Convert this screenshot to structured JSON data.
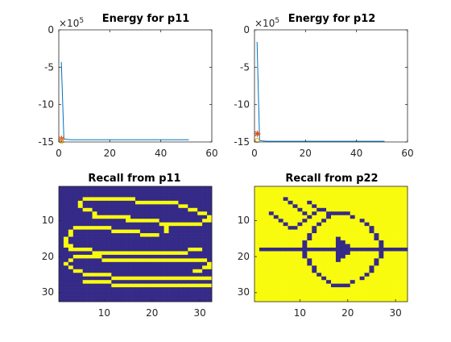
{
  "chart_data": [
    {
      "type": "line",
      "title": "Energy for p11",
      "xlabel": "",
      "ylabel": "",
      "y_exponent": "×10^5",
      "y_exponent_base": "×10",
      "y_exponent_power": "5",
      "xlim": [
        0,
        60
      ],
      "ylim": [
        -15,
        0
      ],
      "x_ticks": [
        "0",
        "20",
        "40",
        "60"
      ],
      "y_ticks": [
        "0",
        "-5",
        "-10",
        "-15"
      ],
      "series": [
        {
          "x": [
            1,
            2,
            3,
            4,
            5,
            10,
            20,
            30,
            40,
            51
          ],
          "values": [
            -4.3,
            -14.6,
            -14.65,
            -14.68,
            -14.7,
            -14.7,
            -14.7,
            -14.7,
            -14.7,
            -14.7
          ],
          "color": "#0072BD"
        }
      ],
      "markers": [
        {
          "x": 1.1,
          "y": -14.6,
          "color": "#D95319",
          "shape": "star"
        },
        {
          "x": 1.1,
          "y": -14.9,
          "color": "#EDB120",
          "shape": "circle"
        }
      ]
    },
    {
      "type": "line",
      "title": "Energy for p12",
      "xlabel": "",
      "ylabel": "",
      "y_exponent": "×10^5",
      "y_exponent_base": "×10",
      "y_exponent_power": "5",
      "xlim": [
        0,
        60
      ],
      "ylim": [
        -15,
        0
      ],
      "x_ticks": [
        "0",
        "20",
        "40",
        "60"
      ],
      "y_ticks": [
        "0",
        "-5",
        "-10",
        "-15"
      ],
      "series": [
        {
          "x": [
            1,
            2,
            3,
            4,
            5,
            10,
            20,
            30,
            40,
            51
          ],
          "values": [
            -1.6,
            -14.8,
            -14.85,
            -14.88,
            -14.9,
            -14.9,
            -14.9,
            -14.9,
            -14.9,
            -14.9
          ],
          "color": "#0072BD"
        }
      ],
      "markers": [
        {
          "x": 1.1,
          "y": -13.9,
          "color": "#D95319",
          "shape": "star"
        },
        {
          "x": 1.1,
          "y": -14.8,
          "color": "#EDB120",
          "shape": "circle"
        }
      ]
    },
    {
      "type": "heatmap",
      "title": "Recall from p11",
      "xlim": [
        0.5,
        32.5
      ],
      "ylim": [
        0.5,
        32.5
      ],
      "x_ticks": [
        "10",
        "20",
        "30"
      ],
      "y_ticks": [
        "10",
        "20",
        "30"
      ],
      "colors": {
        "0": "#352A87",
        "1": "#F9FB0E"
      },
      "rows": [
        "00000000000000000000000000000000",
        "00000000000000000000000000000000",
        "00000000000000000000000000000000",
        "00000111111111110000000000000000",
        "00001000000000001111111110000000",
        "00001000000000000000000001100000",
        "00000110000000000000000000011000",
        "00000001000000000000000000000110",
        "00000001111111100000000000000001",
        "00000000000000111111100000000011",
        "00000000000000000000011111111100",
        "00011111111000000000001000000000",
        "00100000000111111000001000000000",
        "00100000000000000111100000000000",
        "01000000000000000000000000000000",
        "01000000000000000000000000000000",
        "01100000000000000000000000000000",
        "00111110000000000000000000011100",
        "00000001111111111111111111100000",
        "00011111100000000000000000000000",
        "00100000011111111111111111111110",
        "01000000000000000000000000000001",
        "00100000000000000000000000000011",
        "00011000000000000000000000001100",
        "00000111111000000000000000000000",
        "00000000000111111111111111111111",
        "00000111111000000000000000000000",
        "00000000000111111111111111111111",
        "00000000000000000000000000000000",
        "00000000000000000000000000000000",
        "00000000000000000000000000000000",
        "00000000000000000000000000000000"
      ]
    },
    {
      "type": "heatmap",
      "title": "Recall from p22",
      "xlim": [
        0.5,
        32.5
      ],
      "ylim": [
        0.5,
        32.5
      ],
      "x_ticks": [
        "10",
        "20",
        "30"
      ],
      "y_ticks": [
        "10",
        "20",
        "30"
      ],
      "colors": {
        "0": "#352A87",
        "1": "#F9FB0E"
      },
      "rows": [
        "11111111111111111111111111111111",
        "11111111111111111111111111111111",
        "11111111111111111111111111111111",
        "11111101111111111111111111111111",
        "11111110111011111111111111111111",
        "11111111011101111111111111111111",
        "11111111101110011111111111111111",
        "11101111110101100000111111111111",
        "11110111111011101111011111111111",
        "11111011110111011111110111111111",
        "11111101101110111111111011111111",
        "11111110011101111111111101111111",
        "11111111111101111111111101111111",
        "11111111111011111111111110111111",
        "11111111111011111011111110111111",
        "11111111110111111001111111011111",
        "11111111110111111000111111011111",
        "10000000000000000000000000000000",
        "11111111110111111000111111011111",
        "11111111110111111001111111011111",
        "11111111111011111011111110111111",
        "11111111111011111111111110111111",
        "11111111111101111111111101111111",
        "11111111111101111111111101111111",
        "11111111111110111111111011111111",
        "11111111111111011111110111111111",
        "11111111111111101111011111111111",
        "11111111111111110000111111111111",
        "11111111111111111111111111111111",
        "11111111111111111111111111111111",
        "11111111111111111111111111111111",
        "11111111111111111111111111111111"
      ]
    }
  ]
}
